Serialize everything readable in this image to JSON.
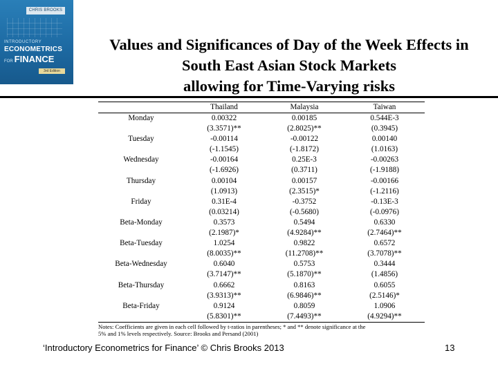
{
  "cover": {
    "author": "CHRIS BROOKS",
    "line1": "INTRODUCTORY",
    "line2": "ECONOMETRICS",
    "line3_prefix": "FOR",
    "line3": "FINANCE",
    "edition": "3rd Edition"
  },
  "title": {
    "line1": "Values and Significances of Day of the Week Effects in",
    "line2": "South East Asian Stock Markets",
    "line3": "allowing for Time-Varying risks"
  },
  "table": {
    "columns": [
      "Thailand",
      "Malaysia",
      "Taiwan"
    ],
    "rows": [
      {
        "label": "Monday",
        "values": [
          "0.00322",
          "0.00185",
          "0.544E-3"
        ]
      },
      {
        "label": "",
        "values": [
          "(3.3571)**",
          "(2.8025)**",
          "(0.3945)"
        ]
      },
      {
        "label": "Tuesday",
        "values": [
          "-0.00114",
          "-0.00122",
          "0.00140"
        ]
      },
      {
        "label": "",
        "values": [
          "(-1.1545)",
          "(-1.8172)",
          "(1.0163)"
        ]
      },
      {
        "label": "Wednesday",
        "values": [
          "-0.00164",
          "0.25E-3",
          "-0.00263"
        ]
      },
      {
        "label": "",
        "values": [
          "(-1.6926)",
          "(0.3711)",
          "(-1.9188)"
        ]
      },
      {
        "label": "Thursday",
        "values": [
          "0.00104",
          "0.00157",
          "-0.00166"
        ]
      },
      {
        "label": "",
        "values": [
          "(1.0913)",
          "(2.3515)*",
          "(-1.2116)"
        ]
      },
      {
        "label": "Friday",
        "values": [
          "0.31E-4",
          "-0.3752",
          "-0.13E-3"
        ]
      },
      {
        "label": "",
        "values": [
          "(0.03214)",
          "(-0.5680)",
          "(-0.0976)"
        ]
      },
      {
        "label": "Beta-Monday",
        "values": [
          "0.3573",
          "0.5494",
          "0.6330"
        ]
      },
      {
        "label": "",
        "values": [
          "(2.1987)*",
          "(4.9284)**",
          "(2.7464)**"
        ]
      },
      {
        "label": "Beta-Tuesday",
        "values": [
          "1.0254",
          "0.9822",
          "0.6572"
        ]
      },
      {
        "label": "",
        "values": [
          "(8.0035)**",
          "(11.2708)**",
          "(3.7078)**"
        ]
      },
      {
        "label": "Beta-Wednesday",
        "values": [
          "0.6040",
          "0.5753",
          "0.3444"
        ]
      },
      {
        "label": "",
        "values": [
          "(3.7147)**",
          "(5.1870)**",
          "(1.4856)"
        ]
      },
      {
        "label": "Beta-Thursday",
        "values": [
          "0.6662",
          "0.8163",
          "0.6055"
        ]
      },
      {
        "label": "",
        "values": [
          "(3.9313)**",
          "(6.9846)**",
          "(2.5146)*"
        ]
      },
      {
        "label": "Beta-Friday",
        "values": [
          "0.9124",
          "0.8059",
          "1.0906"
        ]
      },
      {
        "label": "",
        "values": [
          "(5.8301)**",
          "(7.4493)**",
          "(4.9294)**"
        ]
      }
    ],
    "notes_line1": "Notes: Coefficients are given in each cell followed by t-ratios in parentheses; * and ** denote significance at the",
    "notes_line2": "5% and 1% levels respectively. Source: Brooks and Persand (2001)"
  },
  "footer": {
    "text": "‘Introductory Econometrics for Finance’ © Chris Brooks 2013",
    "page": "13"
  }
}
